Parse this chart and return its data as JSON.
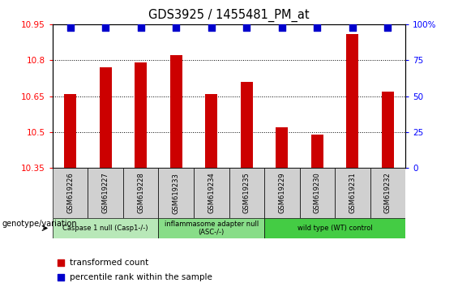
{
  "title": "GDS3925 / 1455481_PM_at",
  "samples": [
    "GSM619226",
    "GSM619227",
    "GSM619228",
    "GSM619233",
    "GSM619234",
    "GSM619235",
    "GSM619229",
    "GSM619230",
    "GSM619231",
    "GSM619232"
  ],
  "bar_values": [
    10.66,
    10.77,
    10.79,
    10.82,
    10.66,
    10.71,
    10.52,
    10.49,
    10.91,
    10.67
  ],
  "percentile_values": [
    98,
    98,
    98,
    98,
    98,
    98,
    98,
    98,
    98,
    98
  ],
  "bar_color": "#cc0000",
  "dot_color": "#0000cc",
  "ylim_left": [
    10.35,
    10.95
  ],
  "ylim_right": [
    0,
    100
  ],
  "yticks_left": [
    10.35,
    10.5,
    10.65,
    10.8,
    10.95
  ],
  "yticks_right": [
    0,
    25,
    50,
    75,
    100
  ],
  "groups": [
    {
      "label": "Caspase 1 null (Casp1-/-)",
      "start": 0,
      "end": 3,
      "color": "#b8e8b8"
    },
    {
      "label": "inflammasome adapter null\n(ASC-/-)",
      "start": 3,
      "end": 6,
      "color": "#88dd88"
    },
    {
      "label": "wild type (WT) control",
      "start": 6,
      "end": 10,
      "color": "#44cc44"
    }
  ],
  "genotype_label": "genotype/variation",
  "legend_bar_label": "transformed count",
  "legend_dot_label": "percentile rank within the sample",
  "sample_box_color": "#d0d0d0",
  "bar_width": 0.35,
  "dot_size": 28
}
